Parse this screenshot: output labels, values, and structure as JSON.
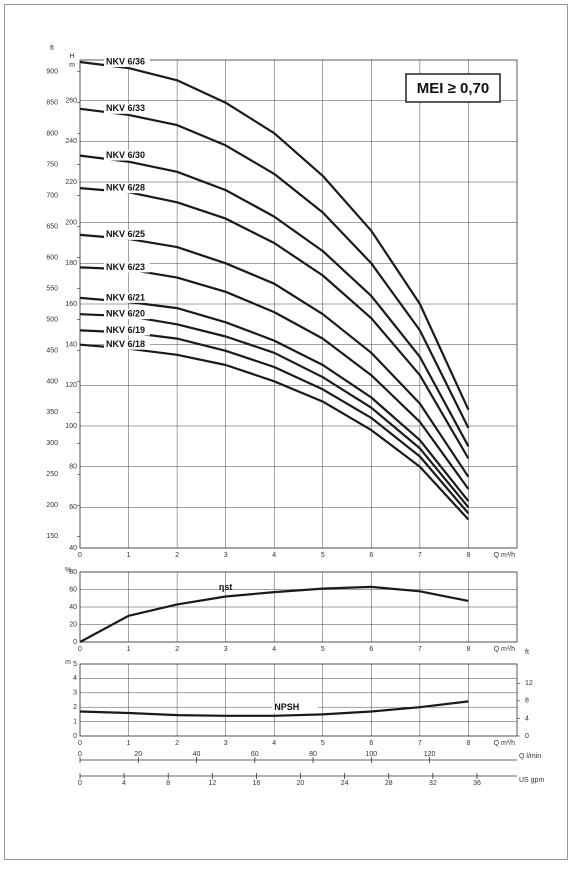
{
  "mei": "MEI ≥ 0,70",
  "chart_data": [
    {
      "type": "line",
      "y_label": "H",
      "y_unit": "m",
      "y2_label": "ft",
      "x_label": "Q m³/h",
      "x": [
        0,
        1,
        2,
        3,
        4,
        5,
        6,
        7,
        8
      ],
      "xlim": [
        0,
        9
      ],
      "xticks": [
        0,
        1,
        2,
        3,
        4,
        5,
        6,
        7,
        8
      ],
      "ylim": [
        40,
        280
      ],
      "yticks": [
        40,
        60,
        80,
        100,
        120,
        140,
        160,
        180,
        200,
        220,
        240,
        260
      ],
      "y2lim": [
        131.2,
        918.6
      ],
      "y2ticks": [
        150,
        200,
        250,
        300,
        350,
        400,
        450,
        500,
        550,
        600,
        650,
        700,
        750,
        800,
        850,
        900
      ],
      "grid": true,
      "series": [
        {
          "name": "NKV 6/36",
          "color": "#1a1a1a",
          "values": [
            279,
            276,
            270,
            259,
            244,
            223,
            196,
            160,
            108
          ]
        },
        {
          "name": "NKV 6/33",
          "color": "#1a1a1a",
          "values": [
            256,
            253,
            248,
            238,
            224,
            205,
            180,
            147,
            99
          ]
        },
        {
          "name": "NKV 6/30",
          "color": "#1a1a1a",
          "values": [
            233,
            230,
            225,
            216,
            203,
            186,
            164,
            134,
            90
          ]
        },
        {
          "name": "NKV 6/28",
          "color": "#1a1a1a",
          "values": [
            217,
            215,
            210,
            202,
            190,
            174,
            153,
            125,
            84
          ]
        },
        {
          "name": "NKV 6/25",
          "color": "#1a1a1a",
          "values": [
            194,
            192,
            188,
            180,
            170,
            155,
            136,
            111,
            75
          ]
        },
        {
          "name": "NKV 6/23",
          "color": "#1a1a1a",
          "values": [
            178,
            177,
            173,
            166,
            156,
            143,
            125,
            102,
            69
          ]
        },
        {
          "name": "NKV 6/21",
          "color": "#1a1a1a",
          "values": [
            163,
            161,
            158,
            151,
            142,
            130,
            114,
            93,
            63
          ]
        },
        {
          "name": "NKV 6/20",
          "color": "#1a1a1a",
          "values": [
            155,
            154,
            150,
            144,
            136,
            124,
            109,
            89,
            60
          ]
        },
        {
          "name": "NKV 6/19",
          "color": "#1a1a1a",
          "values": [
            147,
            146,
            143,
            137,
            129,
            118,
            104,
            85,
            57
          ]
        },
        {
          "name": "NKV 6/18",
          "color": "#1a1a1a",
          "values": [
            140,
            138,
            135,
            130,
            122,
            112,
            98,
            80,
            54
          ]
        }
      ]
    },
    {
      "type": "line",
      "y_unit": "%",
      "x_label": "Q m³/h",
      "x": [
        0,
        1,
        2,
        3,
        4,
        5,
        6,
        7,
        8
      ],
      "xlim": [
        0,
        9
      ],
      "xticks": [
        0,
        1,
        2,
        3,
        4,
        5,
        6,
        7,
        8
      ],
      "ylim": [
        0,
        80
      ],
      "yticks": [
        0,
        20,
        40,
        60,
        80
      ],
      "grid": true,
      "series": [
        {
          "name": "ηst",
          "color": "#1a1a1a",
          "values": [
            0,
            30,
            43,
            52,
            57,
            61,
            63,
            58,
            47
          ]
        }
      ]
    },
    {
      "type": "line",
      "y_unit": "m",
      "y2_label": "ft",
      "x_label": "Q m³/h",
      "x": [
        0,
        1,
        2,
        3,
        4,
        5,
        6,
        7,
        8
      ],
      "xlim": [
        0,
        9
      ],
      "xticks": [
        0,
        1,
        2,
        3,
        4,
        5,
        6,
        7,
        8
      ],
      "ylim": [
        0,
        5
      ],
      "yticks": [
        0,
        1,
        2,
        3,
        4,
        5
      ],
      "y2lim": [
        0,
        16.4
      ],
      "y2ticks": [
        0,
        4,
        8,
        12
      ],
      "grid": true,
      "series": [
        {
          "name": "NPSH",
          "color": "#1a1a1a",
          "values": [
            1.7,
            1.6,
            1.45,
            1.4,
            1.4,
            1.5,
            1.7,
            2.0,
            2.4
          ]
        }
      ]
    },
    {
      "type": "axis",
      "x_label": "Q l/min",
      "xlim": [
        0,
        150
      ],
      "xticks": [
        0,
        20,
        40,
        60,
        80,
        100,
        120
      ]
    },
    {
      "type": "axis",
      "x_label": "US gpm",
      "xlim": [
        0,
        39.63
      ],
      "xticks": [
        0,
        4,
        8,
        12,
        16,
        20,
        24,
        28,
        32,
        36
      ]
    }
  ]
}
